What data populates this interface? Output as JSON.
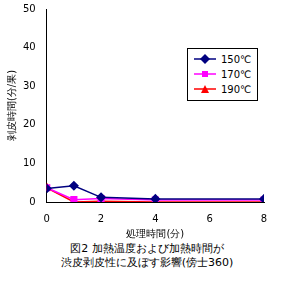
{
  "chart_data": {
    "type": "line",
    "title": "図2 加熱温度および加熱時間が\n渋皮剥皮性に及ぼす影響(傍士360)",
    "x_label": "処理時間(分)",
    "y_label": "剥皮時間(分/果)",
    "x": [
      0,
      1,
      2,
      4,
      8
    ],
    "xlim": [
      0,
      8
    ],
    "xticks": [
      0,
      2,
      4,
      6,
      8
    ],
    "ylim": [
      0,
      50
    ],
    "yticks": [
      0,
      10,
      20,
      30,
      40,
      50
    ],
    "grid": false,
    "legend": "upper right",
    "series": [
      {
        "name": "150℃",
        "color": "#000080",
        "marker": "diamond",
        "values": [
          3.5,
          4.2,
          1.2,
          0.8,
          0.8
        ]
      },
      {
        "name": "170℃",
        "color": "#ff00ff",
        "marker": "square",
        "values": [
          3.7,
          0.6,
          0.9,
          0.5,
          0.5
        ]
      },
      {
        "name": "190℃",
        "color": "#ff0000",
        "marker": "triangle",
        "values": [
          3.7,
          0.0,
          0.2,
          0.0,
          0.0
        ]
      }
    ]
  }
}
